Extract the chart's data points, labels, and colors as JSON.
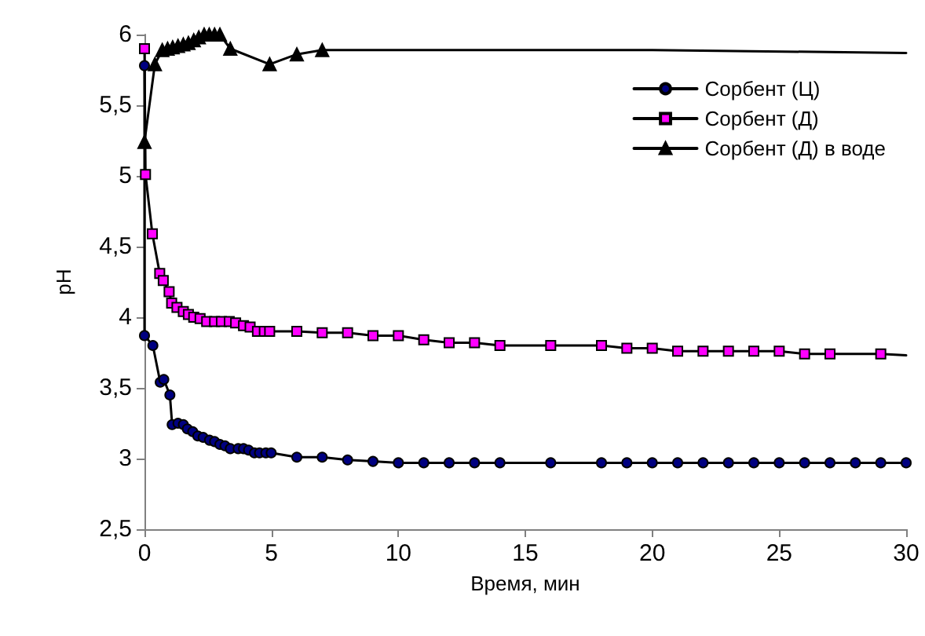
{
  "chart_data": {
    "type": "line",
    "xlabel": "Время, мин",
    "ylabel": "pH",
    "xlim": [
      0,
      30
    ],
    "xticks": [
      0,
      5,
      10,
      15,
      20,
      25,
      30
    ],
    "ylim": [
      2.5,
      6
    ],
    "yticks": [
      {
        "value": 2.5,
        "label": "2,5"
      },
      3,
      {
        "value": 3.5,
        "label": "3,5"
      },
      4,
      {
        "value": 4.5,
        "label": "4,5"
      },
      5,
      {
        "value": 5.5,
        "label": "5,5"
      },
      6
    ],
    "grid": false,
    "legend": "top right",
    "line_style": "solid",
    "series": [
      {
        "name": "Сорбент (Ц)",
        "color": "#000080",
        "marker": "circle",
        "x": [
          0,
          0,
          0.33,
          0.62,
          0.76,
          1.0,
          1.09,
          1.32,
          1.53,
          1.69,
          1.9,
          2.1,
          2.31,
          2.56,
          2.76,
          2.97,
          3.17,
          3.38,
          3.69,
          3.9,
          4.1,
          4.33,
          4.53,
          4.78,
          4.99,
          6,
          7,
          8,
          9,
          10,
          11,
          12,
          13,
          14,
          16,
          18,
          19,
          20,
          21,
          22,
          23,
          24,
          25,
          26,
          27,
          28,
          29,
          30
        ],
        "values": [
          5.78,
          3.87,
          3.8,
          3.54,
          3.56,
          3.45,
          3.24,
          3.25,
          3.24,
          3.21,
          3.19,
          3.16,
          3.15,
          3.13,
          3.12,
          3.1,
          3.09,
          3.07,
          3.07,
          3.07,
          3.06,
          3.04,
          3.04,
          3.04,
          3.04,
          3.01,
          3.01,
          2.99,
          2.98,
          2.97,
          2.97,
          2.97,
          2.97,
          2.97,
          2.97,
          2.97,
          2.97,
          2.97,
          2.97,
          2.97,
          2.97,
          2.97,
          2.97,
          2.97,
          2.97,
          2.97,
          2.97,
          2.97
        ]
      },
      {
        "name": "Сорбент (Д)",
        "color": "#ff00ff",
        "marker": "square",
        "x": [
          0,
          0.04,
          0.31,
          0.6,
          0.74,
          0.97,
          1.07,
          1.28,
          1.53,
          1.73,
          1.94,
          2.19,
          2.45,
          2.76,
          3.03,
          3.34,
          3.59,
          3.9,
          4.16,
          4.45,
          4.72,
          4.93,
          6,
          7,
          8,
          9,
          10,
          11,
          12,
          13,
          14,
          16,
          18,
          19,
          20,
          21,
          22,
          23,
          24,
          25,
          26,
          27,
          29
        ],
        "values": [
          5.9,
          5.01,
          4.59,
          4.31,
          4.26,
          4.18,
          4.1,
          4.07,
          4.04,
          4.02,
          4.0,
          3.99,
          3.97,
          3.97,
          3.97,
          3.97,
          3.96,
          3.94,
          3.93,
          3.9,
          3.9,
          3.9,
          3.9,
          3.89,
          3.89,
          3.87,
          3.87,
          3.84,
          3.82,
          3.82,
          3.8,
          3.8,
          3.8,
          3.78,
          3.78,
          3.76,
          3.76,
          3.76,
          3.76,
          3.76,
          3.74,
          3.74,
          3.74
        ]
      },
      {
        "name": "Сорбент (Д) в воде",
        "color": "#000000",
        "marker": "triangle",
        "x": [
          0,
          0.41,
          0.7,
          0.91,
          1.11,
          1.32,
          1.53,
          1.73,
          1.94,
          2.14,
          2.35,
          2.55,
          2.76,
          2.97,
          3.38,
          4.93,
          6,
          7
        ],
        "values": [
          5.24,
          5.79,
          5.89,
          5.9,
          5.91,
          5.92,
          5.93,
          5.94,
          5.96,
          5.98,
          6.0,
          6.0,
          6.0,
          6.0,
          5.9,
          5.79,
          5.86,
          5.89
        ]
      },
      {
        "color": "#000000",
        "marker": "none",
        "x": [
          7,
          20,
          30
        ],
        "values": [
          5.89,
          5.89,
          5.87
        ]
      },
      {
        "color": "#000000",
        "marker": "none",
        "x": [
          29,
          30
        ],
        "values": [
          3.74,
          3.73
        ]
      }
    ]
  }
}
